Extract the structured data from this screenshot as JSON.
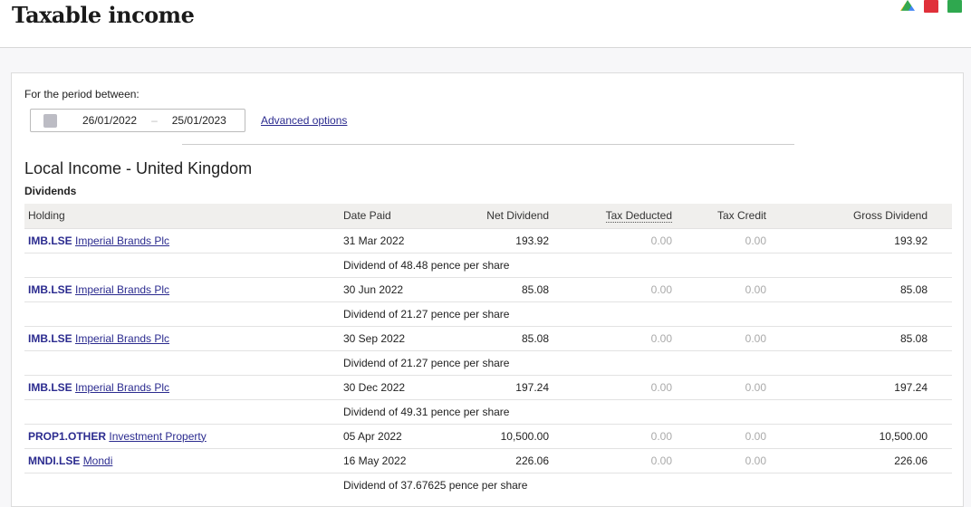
{
  "header": {
    "title": "Taxable income",
    "icons": [
      "google-drive-icon",
      "pdf-icon",
      "spreadsheet-icon"
    ]
  },
  "filter": {
    "label": "For the period between:",
    "from": "26/01/2022",
    "separator": "–",
    "to": "25/01/2023",
    "advanced": "Advanced options"
  },
  "section": {
    "title": "Local Income - United Kingdom",
    "subtitle": "Dividends"
  },
  "table": {
    "columns": [
      "Holding",
      "Date Paid",
      "Net Dividend",
      "Tax Deducted",
      "Tax Credit",
      "Gross Dividend"
    ],
    "rows": [
      {
        "ticker": "IMB.LSE",
        "name": "Imperial Brands Plc",
        "date": "31 Mar 2022",
        "net": "193.92",
        "tax": "0.00",
        "credit": "0.00",
        "gross": "193.92",
        "note": "Dividend of 48.48 pence per share"
      },
      {
        "ticker": "IMB.LSE",
        "name": "Imperial Brands Plc",
        "date": "30 Jun 2022",
        "net": "85.08",
        "tax": "0.00",
        "credit": "0.00",
        "gross": "85.08",
        "note": "Dividend of 21.27 pence per share"
      },
      {
        "ticker": "IMB.LSE",
        "name": "Imperial Brands Plc",
        "date": "30 Sep 2022",
        "net": "85.08",
        "tax": "0.00",
        "credit": "0.00",
        "gross": "85.08",
        "note": "Dividend of 21.27 pence per share"
      },
      {
        "ticker": "IMB.LSE",
        "name": "Imperial Brands Plc",
        "date": "30 Dec 2022",
        "net": "197.24",
        "tax": "0.00",
        "credit": "0.00",
        "gross": "197.24",
        "note": "Dividend of 49.31 pence per share"
      },
      {
        "ticker": "PROP1.OTHER",
        "name": "Investment Property",
        "date": "05 Apr 2022",
        "net": "10,500.00",
        "tax": "0.00",
        "credit": "0.00",
        "gross": "10,500.00",
        "note": null
      },
      {
        "ticker": "MNDI.LSE",
        "name": "Mondi",
        "date": "16 May 2022",
        "net": "226.06",
        "tax": "0.00",
        "credit": "0.00",
        "gross": "226.06",
        "note": "Dividend of 37.67625 pence per share"
      }
    ]
  }
}
